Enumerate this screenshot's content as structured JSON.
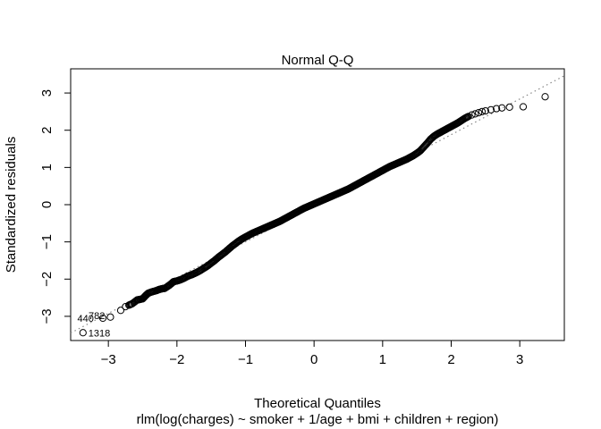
{
  "chart_data": {
    "type": "scatter",
    "title": "Normal Q-Q",
    "xlabel": "Theoretical Quantiles",
    "subtitle": "rlm(log(charges) ~ smoker + 1/age + bmi + children + region)",
    "ylabel": "Standardized residuals",
    "xlim": [
      -3.55,
      3.65
    ],
    "ylim": [
      -3.65,
      3.65
    ],
    "xticks": [
      -3,
      -2,
      -1,
      0,
      1,
      2,
      3
    ],
    "yticks": [
      -3,
      -2,
      -1,
      0,
      1,
      2,
      3
    ],
    "grid": false,
    "reference_line": {
      "style": "dotted",
      "color": "#888888",
      "intercept": -0.04,
      "slope": 0.96
    },
    "points": [
      [
        -3.37,
        -3.44
      ],
      [
        -3.08,
        -3.05
      ],
      [
        -2.97,
        -3.02
      ],
      [
        -2.82,
        -2.84
      ],
      [
        -2.75,
        -2.74
      ],
      [
        -2.7,
        -2.7
      ],
      [
        -2.65,
        -2.66
      ],
      [
        -2.58,
        -2.56
      ],
      [
        -2.55,
        -2.55
      ],
      [
        -2.5,
        -2.53
      ],
      [
        -2.46,
        -2.45
      ],
      [
        -2.42,
        -2.38
      ],
      [
        -2.36,
        -2.34
      ],
      [
        -2.3,
        -2.31
      ],
      [
        -2.26,
        -2.28
      ],
      [
        -2.22,
        -2.26
      ],
      [
        -2.18,
        -2.25
      ],
      [
        -2.12,
        -2.18
      ],
      [
        -2.08,
        -2.12
      ],
      [
        -2.05,
        -2.07
      ],
      [
        -2.0,
        -2.05
      ],
      [
        -1.95,
        -2.02
      ],
      [
        -1.9,
        -1.98
      ],
      [
        -1.84,
        -1.92
      ],
      [
        -1.78,
        -1.88
      ],
      [
        -1.72,
        -1.83
      ],
      [
        -1.66,
        -1.77
      ],
      [
        -1.6,
        -1.7
      ],
      [
        -1.55,
        -1.64
      ],
      [
        -1.5,
        -1.57
      ],
      [
        -1.45,
        -1.5
      ],
      [
        -1.4,
        -1.42
      ],
      [
        -1.35,
        -1.35
      ],
      [
        -1.3,
        -1.28
      ],
      [
        -1.25,
        -1.2
      ],
      [
        -1.2,
        -1.12
      ],
      [
        -1.15,
        -1.05
      ],
      [
        -1.1,
        -0.98
      ],
      [
        -1.05,
        -0.92
      ],
      [
        -1.0,
        -0.87
      ],
      [
        -0.95,
        -0.82
      ],
      [
        -0.9,
        -0.77
      ],
      [
        -0.85,
        -0.73
      ],
      [
        -0.8,
        -0.69
      ],
      [
        -0.75,
        -0.65
      ],
      [
        -0.7,
        -0.61
      ],
      [
        -0.65,
        -0.57
      ],
      [
        -0.6,
        -0.53
      ],
      [
        -0.55,
        -0.49
      ],
      [
        -0.5,
        -0.45
      ],
      [
        -0.45,
        -0.4
      ],
      [
        -0.4,
        -0.35
      ],
      [
        -0.35,
        -0.3
      ],
      [
        -0.3,
        -0.25
      ],
      [
        -0.25,
        -0.2
      ],
      [
        -0.2,
        -0.15
      ],
      [
        -0.15,
        -0.1
      ],
      [
        -0.1,
        -0.06
      ],
      [
        -0.05,
        -0.02
      ],
      [
        0.0,
        0.02
      ],
      [
        0.05,
        0.06
      ],
      [
        0.1,
        0.1
      ],
      [
        0.15,
        0.14
      ],
      [
        0.2,
        0.18
      ],
      [
        0.25,
        0.22
      ],
      [
        0.3,
        0.26
      ],
      [
        0.35,
        0.3
      ],
      [
        0.4,
        0.34
      ],
      [
        0.45,
        0.38
      ],
      [
        0.5,
        0.42
      ],
      [
        0.55,
        0.47
      ],
      [
        0.6,
        0.52
      ],
      [
        0.65,
        0.57
      ],
      [
        0.7,
        0.62
      ],
      [
        0.75,
        0.67
      ],
      [
        0.8,
        0.72
      ],
      [
        0.85,
        0.77
      ],
      [
        0.9,
        0.82
      ],
      [
        0.95,
        0.87
      ],
      [
        1.0,
        0.92
      ],
      [
        1.05,
        0.97
      ],
      [
        1.1,
        1.02
      ],
      [
        1.15,
        1.06
      ],
      [
        1.2,
        1.1
      ],
      [
        1.25,
        1.14
      ],
      [
        1.3,
        1.18
      ],
      [
        1.35,
        1.22
      ],
      [
        1.4,
        1.27
      ],
      [
        1.45,
        1.32
      ],
      [
        1.5,
        1.38
      ],
      [
        1.55,
        1.45
      ],
      [
        1.6,
        1.55
      ],
      [
        1.65,
        1.65
      ],
      [
        1.7,
        1.76
      ],
      [
        1.75,
        1.84
      ],
      [
        1.8,
        1.9
      ],
      [
        1.85,
        1.95
      ],
      [
        1.9,
        2.0
      ],
      [
        1.95,
        2.05
      ],
      [
        2.0,
        2.1
      ],
      [
        2.05,
        2.15
      ],
      [
        2.1,
        2.2
      ],
      [
        2.15,
        2.26
      ],
      [
        2.2,
        2.32
      ],
      [
        2.25,
        2.37
      ],
      [
        2.3,
        2.41
      ],
      [
        2.35,
        2.44
      ],
      [
        2.4,
        2.47
      ],
      [
        2.45,
        2.5
      ],
      [
        2.5,
        2.52
      ],
      [
        2.58,
        2.55
      ],
      [
        2.66,
        2.58
      ],
      [
        2.74,
        2.6
      ],
      [
        2.85,
        2.62
      ],
      [
        3.05,
        2.63
      ],
      [
        3.37,
        2.9
      ]
    ],
    "annotations": [
      {
        "label": "782",
        "x": -3.08,
        "y": -3.05
      },
      {
        "label": "440",
        "x": -2.97,
        "y": -3.02
      },
      {
        "label": "1318",
        "x": -3.37,
        "y": -3.44
      }
    ]
  }
}
